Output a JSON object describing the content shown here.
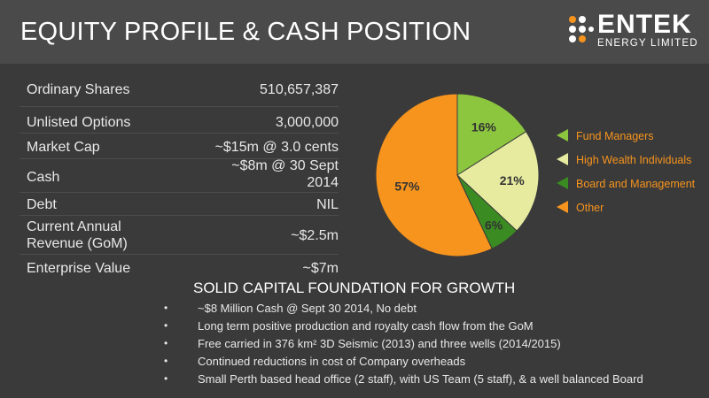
{
  "header": {
    "title": "EQUITY PROFILE & CASH POSITION",
    "logo_word": "ENTEK",
    "logo_sub": "ENERGY LIMITED"
  },
  "table": {
    "rows": [
      {
        "label": "Ordinary Shares",
        "value": "510,657,387"
      },
      {
        "label": "Unlisted Options",
        "value": "3,000,000"
      },
      {
        "label": "Market Cap",
        "value": "~$15m @ 3.0 cents"
      },
      {
        "label": "Cash",
        "value": "~$8m @ 30 Sept 2014"
      },
      {
        "label": "Debt",
        "value": "NIL"
      },
      {
        "label": "Current Annual Revenue (GoM)",
        "value": "~$2.5m"
      },
      {
        "label": "Enterprise Value",
        "value": "~$7m"
      }
    ]
  },
  "section": {
    "heading": "SOLID CAPITAL FOUNDATION FOR GROWTH",
    "bullet_char": "•",
    "bullets": [
      "~$8 Million Cash @ Sept 30 2014, No debt",
      "Long term positive production and royalty cash flow from the GoM",
      "Free carried in 376 km² 3D Seismic (2013) and three wells (2014/2015)",
      "Continued reductions in cost of Company overheads",
      "Small Perth based head office (2 staff), with US Team (5 staff), & a well balanced Board"
    ]
  },
  "chart_data": {
    "type": "pie",
    "categories": [
      "Fund Managers",
      "High Wealth Individuals",
      "Board and Management",
      "Other"
    ],
    "values": [
      16,
      21,
      6,
      57
    ],
    "labels": [
      "16%",
      "21%",
      "6%",
      "57%"
    ],
    "colors": [
      "#8cc63f",
      "#e6eba0",
      "#3a8c22",
      "#f7941d"
    ],
    "legend_position": "right"
  }
}
